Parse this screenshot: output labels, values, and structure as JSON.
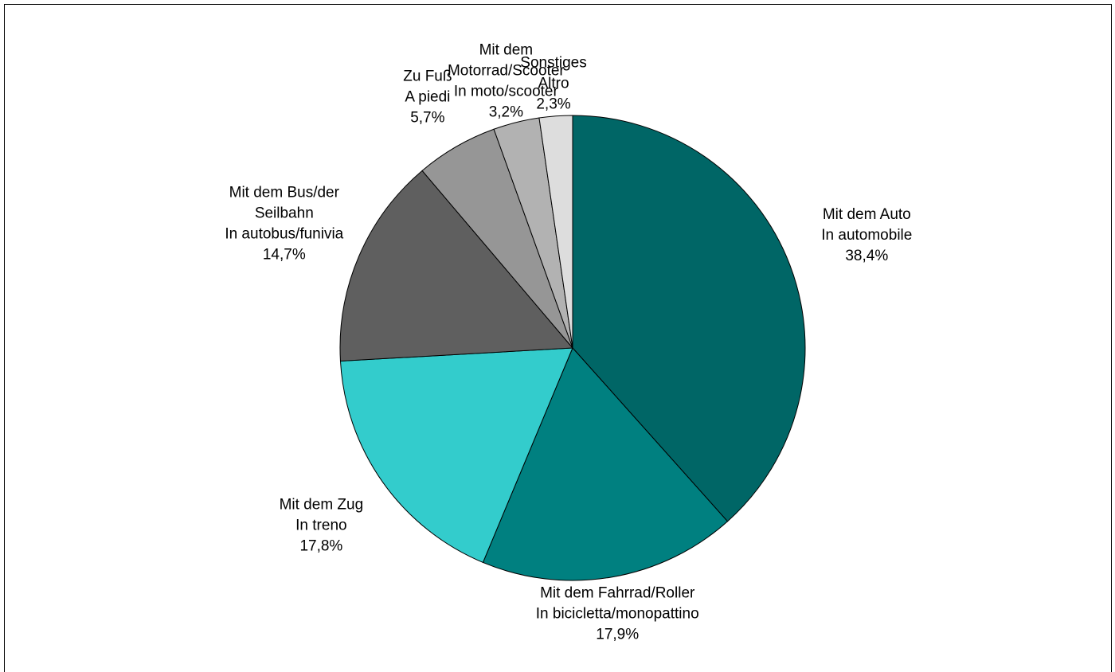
{
  "chart_data": {
    "type": "pie",
    "categories": [
      [
        "Mit dem Auto",
        "In automobile"
      ],
      [
        "Mit dem Fahrrad/Roller",
        "In bicicletta/monopattino"
      ],
      [
        "Mit dem Zug",
        "In treno"
      ],
      [
        "Mit dem Bus/der",
        "Seilbahn",
        "In autobus/funivia"
      ],
      [
        "Zu Fuß",
        "A piedi"
      ],
      [
        "Mit dem",
        "Motorrad/Scooter",
        "In moto/scooter"
      ],
      [
        "Sonstiges",
        "Altro"
      ]
    ],
    "values": [
      38.4,
      17.9,
      17.8,
      14.7,
      5.7,
      3.2,
      2.3
    ],
    "value_labels": [
      "38,4%",
      "17,9%",
      "17,8%",
      "14,7%",
      "5,7%",
      "3,2%",
      "2,3%"
    ],
    "colors": [
      "#006666",
      "#008080",
      "#33cccc",
      "#5f5f5f",
      "#969696",
      "#b2b2b2",
      "#dddddd"
    ]
  }
}
